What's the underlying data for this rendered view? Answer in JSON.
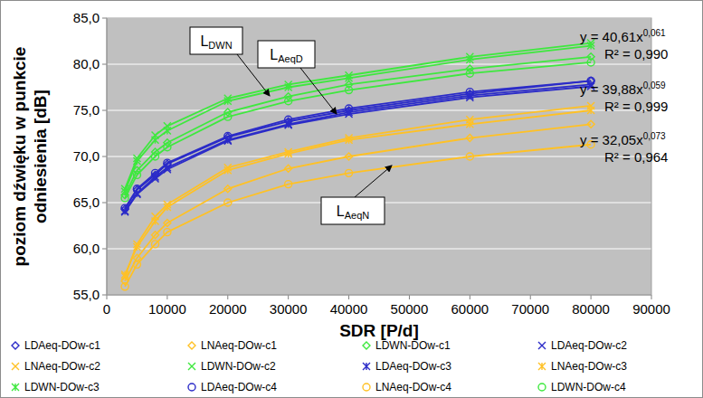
{
  "chart_data": {
    "type": "scatter",
    "x_label": "SDR [P/d]",
    "y_label": [
      "poziom dźwięku w punkcie",
      "odniesienia [dB]"
    ],
    "x": [
      3000,
      5000,
      8000,
      10000,
      20000,
      30000,
      40000,
      60000,
      80000
    ],
    "xlim": [
      0,
      90000
    ],
    "xticks": [
      0,
      10000,
      20000,
      30000,
      40000,
      50000,
      60000,
      70000,
      80000,
      90000
    ],
    "ylim": [
      55,
      85
    ],
    "yticks": [
      {
        "value": 55,
        "label": "55,0"
      },
      {
        "value": 60,
        "label": "60,0"
      },
      {
        "value": 65,
        "label": "65,0"
      },
      {
        "value": 70,
        "label": "70,0"
      },
      {
        "value": 75,
        "label": "75,0"
      },
      {
        "value": 80,
        "label": "80,0"
      },
      {
        "value": 85,
        "label": "85,0"
      }
    ],
    "grid": true,
    "legend": "bottom",
    "series": [
      {
        "name": "LDAeq-DOw-c1",
        "color": "#2b2bc8",
        "marker": "diamond",
        "line_style": "solid",
        "values": [
          64.3,
          66.4,
          68.0,
          69.2,
          72.1,
          73.8,
          75.0,
          76.8,
          78.2
        ]
      },
      {
        "name": "LNAeq-DOw-c1",
        "color": "#ffc125",
        "marker": "diamond",
        "line_style": "solid",
        "values": [
          56.5,
          59.0,
          61.5,
          62.8,
          66.5,
          68.7,
          70.0,
          72.0,
          73.5
        ]
      },
      {
        "name": "LDWN-DOw-c1",
        "color": "#3ee83e",
        "marker": "diamond",
        "line_style": "solid",
        "values": [
          65.8,
          68.5,
          70.5,
          71.5,
          74.8,
          76.5,
          77.8,
          79.5,
          80.8
        ]
      },
      {
        "name": "LDAeq-DOw-c2",
        "color": "#2b2bc8",
        "marker": "x",
        "line_style": "solid",
        "values": [
          64.0,
          65.9,
          67.6,
          68.6,
          71.7,
          73.4,
          74.6,
          76.4,
          77.6
        ]
      },
      {
        "name": "LNAeq-DOw-c2",
        "color": "#ffc125",
        "marker": "x",
        "line_style": "solid",
        "values": [
          57.0,
          60.5,
          63.5,
          64.8,
          68.8,
          70.5,
          72.0,
          74.0,
          75.5
        ]
      },
      {
        "name": "LDWN-DOw-c2",
        "color": "#3ee83e",
        "marker": "x",
        "line_style": "solid",
        "values": [
          66.5,
          69.8,
          72.3,
          73.3,
          76.3,
          77.8,
          78.8,
          80.8,
          82.3
        ]
      },
      {
        "name": "LDAeq-DOw-c3",
        "color": "#2b2bc8",
        "marker": "star",
        "line_style": "solid",
        "values": [
          64.1,
          66.0,
          67.8,
          68.8,
          71.8,
          73.5,
          74.8,
          76.6,
          77.8
        ]
      },
      {
        "name": "LNAeq-DOw-c3",
        "color": "#ffc125",
        "marker": "star",
        "line_style": "solid",
        "values": [
          57.2,
          60.2,
          63.0,
          64.5,
          68.5,
          70.3,
          71.8,
          73.5,
          75.0
        ]
      },
      {
        "name": "LDWN-DOw-c3",
        "color": "#3ee83e",
        "marker": "star",
        "line_style": "solid",
        "values": [
          66.2,
          69.5,
          71.8,
          72.8,
          76.0,
          77.5,
          78.5,
          80.5,
          82.0
        ]
      },
      {
        "name": "LDAeq-DOw-c4",
        "color": "#2b2bc8",
        "marker": "circle",
        "line_style": "solid",
        "values": [
          64.4,
          66.5,
          68.2,
          69.3,
          72.2,
          74.0,
          75.2,
          77.0,
          78.2
        ]
      },
      {
        "name": "LNAeq-DOw-c4",
        "color": "#ffc125",
        "marker": "circle",
        "line_style": "solid",
        "values": [
          55.9,
          58.3,
          60.5,
          61.8,
          65.0,
          67.0,
          68.2,
          70.0,
          71.3
        ]
      },
      {
        "name": "LDWN-DOw-c4",
        "color": "#3ee83e",
        "marker": "circle",
        "line_style": "solid",
        "values": [
          65.5,
          68.0,
          70.0,
          71.0,
          74.3,
          76.0,
          77.2,
          79.0,
          80.2
        ]
      }
    ],
    "annotations": [
      {
        "text": "L",
        "subscript": "DWN"
      },
      {
        "text": "L",
        "subscript": "AeqD"
      },
      {
        "text": "L",
        "subscript": "AeqN"
      }
    ],
    "trendline_equations": [
      {
        "text": "y = 40,61x",
        "exponent": "0,061",
        "r2": "R² = 0,990"
      },
      {
        "text": "y = 39,88x",
        "exponent": "0,059",
        "r2": "R² = 0,999"
      },
      {
        "text": "y = 32,05x",
        "exponent": "0,073",
        "r2": "R² = 0,964"
      }
    ]
  }
}
